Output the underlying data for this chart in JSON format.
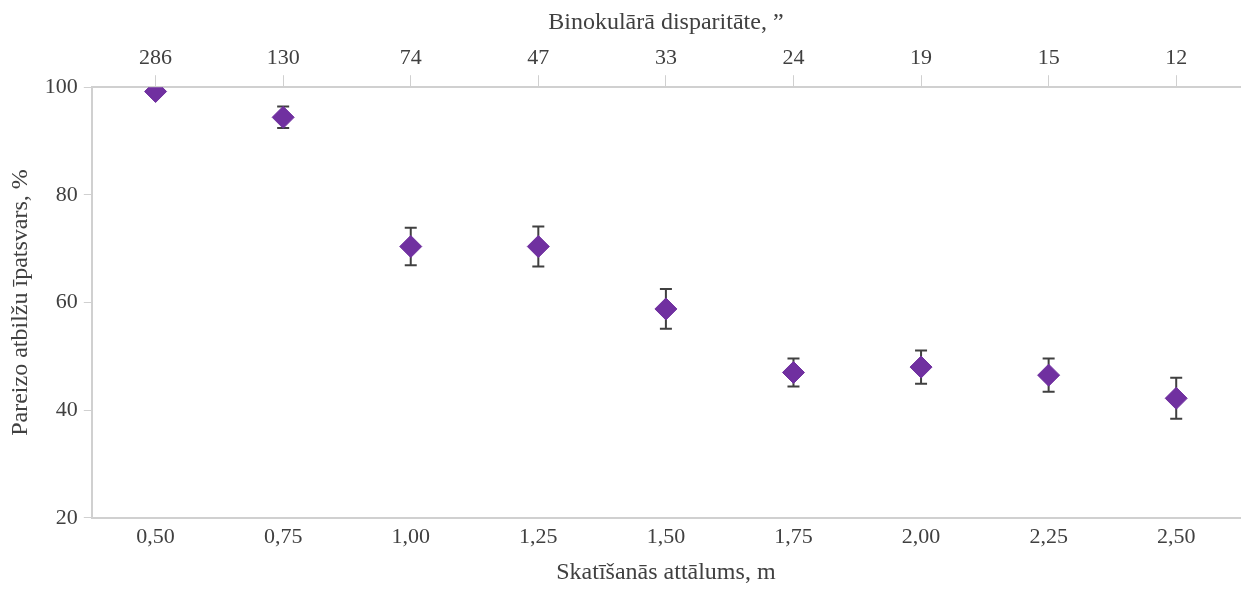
{
  "chart_data": {
    "type": "scatter",
    "xlabel": "Skatīšanās attālums, m",
    "ylabel": "Pareizo atbilžu īpatsvars, %",
    "x2label": "Binokulārā disparitāte, ”",
    "categories": [
      "0,50",
      "0,75",
      "1,00",
      "1,25",
      "1,50",
      "1,75",
      "2,00",
      "2,25",
      "2,50"
    ],
    "series": [
      {
        "color": "#7030a0",
        "values": [
          99.2,
          94.4,
          70.4,
          70.4,
          58.8,
          47,
          48,
          46.5,
          42.2
        ],
        "errors": [
          null,
          2,
          3.5,
          3.7,
          3.7,
          2.6,
          3.1,
          3.1,
          3.8
        ]
      }
    ],
    "annotations": [
      "286",
      "130",
      "74",
      "47",
      "33",
      "24",
      "19",
      "15",
      "12"
    ],
    "ylim": [
      20,
      100
    ],
    "yticks": [
      20,
      40,
      60,
      80,
      100
    ],
    "marker": "diamond",
    "grid": false,
    "legend": false
  }
}
